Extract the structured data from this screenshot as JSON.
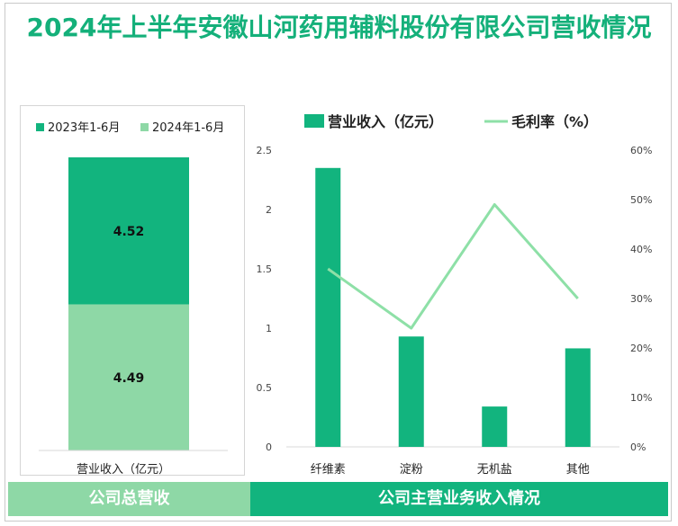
{
  "title": "2024年上半年安徽山河药用辅料股份有限公司营收情况",
  "colors": {
    "title": "#14b07a",
    "bar_dark": "#12b47e",
    "bar_light": "#8ed8a6",
    "line": "#8ee0a7",
    "band_left": "#8ed8a6",
    "band_right": "#12b47e"
  },
  "left_band": "公司总营收",
  "right_band": "公司主营业务收入情况",
  "chart_data": [
    {
      "type": "bar",
      "stacked": true,
      "categories": [
        ""
      ],
      "series": [
        {
          "name": "2023年1-6月",
          "values": [
            4.52
          ]
        },
        {
          "name": "2024年1-6月",
          "values": [
            4.49
          ]
        }
      ],
      "xlabel": "营业收入（亿元）",
      "legend_position": "top"
    },
    {
      "type": "bar",
      "categories": [
        "纤维素",
        "淀粉",
        "无机盐",
        "其他"
      ],
      "series": [
        {
          "name": "营业收入（亿元）",
          "type": "bar",
          "axis": "left",
          "values": [
            2.35,
            0.93,
            0.34,
            0.83
          ]
        },
        {
          "name": "毛利率（%）",
          "type": "line",
          "axis": "right",
          "values": [
            36,
            24,
            49,
            30
          ]
        }
      ],
      "ylim": [
        0,
        2.5
      ],
      "yticks": [
        "0",
        "0.5",
        "1",
        "1.5",
        "2",
        "2.5"
      ],
      "y2lim": [
        0,
        60
      ],
      "y2ticks": [
        "0%",
        "10%",
        "20%",
        "30%",
        "40%",
        "50%",
        "60%"
      ],
      "legend_position": "top",
      "grid": false
    }
  ]
}
